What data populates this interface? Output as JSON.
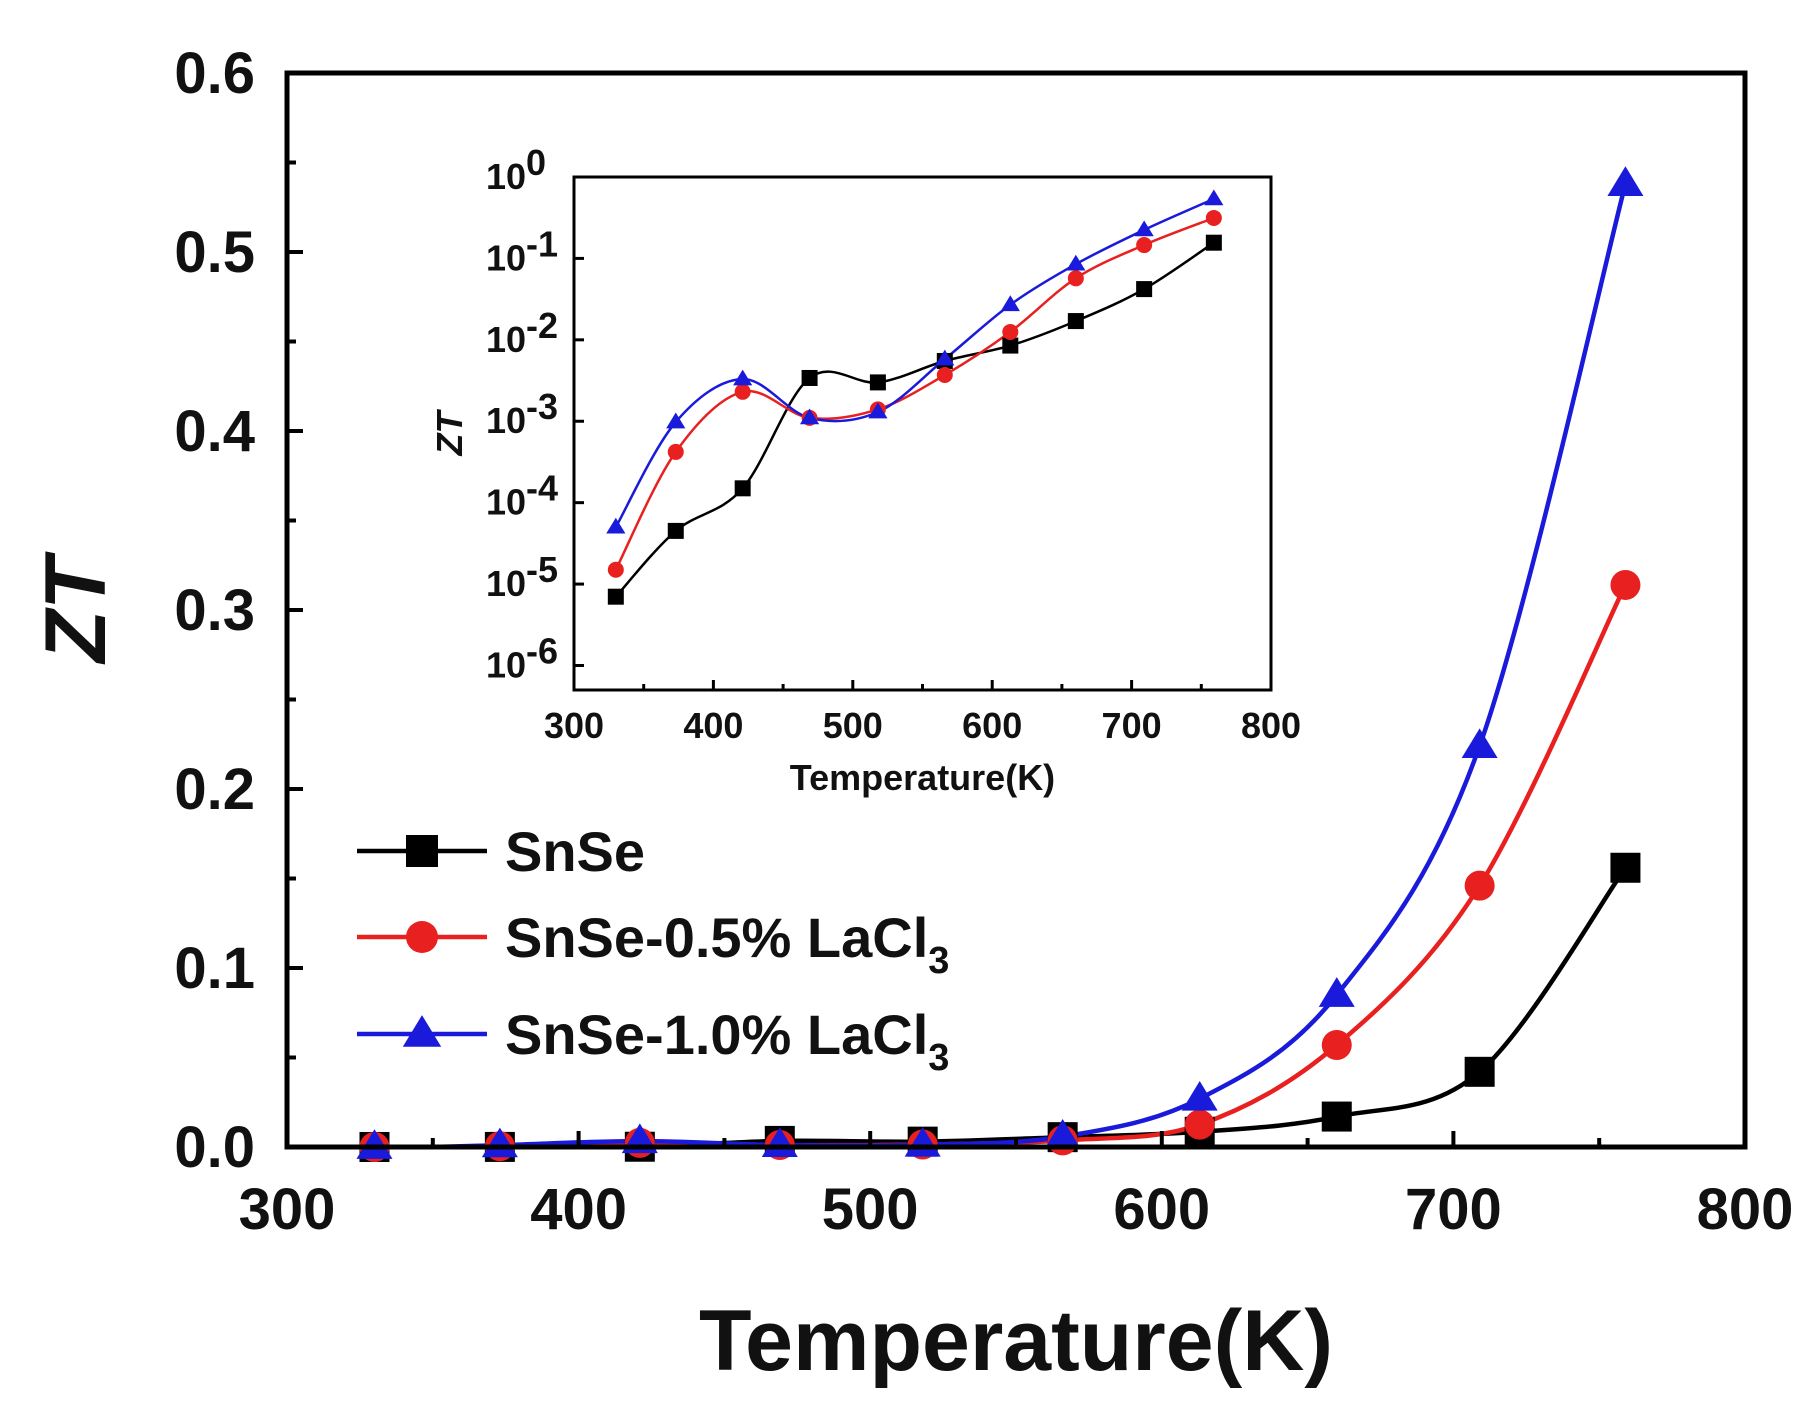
{
  "chart_data": [
    {
      "type": "line",
      "role": "main",
      "xlabel": "Temperature(K)",
      "ylabel": "ZT",
      "xlim": [
        300,
        800
      ],
      "ylim": [
        0,
        0.6
      ],
      "xticks": [
        "300",
        "400",
        "500",
        "600",
        "700",
        "800"
      ],
      "yticks": [
        "0.0",
        "0.1",
        "0.2",
        "0.3",
        "0.4",
        "0.5",
        "0.6"
      ],
      "x": [
        330,
        373,
        421,
        469,
        518,
        566,
        613,
        660,
        709,
        759
      ],
      "grid": false,
      "legend_position": "bottom-left",
      "series": [
        {
          "name": "SnSe",
          "marker": "square",
          "color": "#000000",
          "values": [
            7e-06,
            4.5e-05,
            0.00015,
            0.0034,
            0.003,
            0.0055,
            0.0085,
            0.017,
            0.042,
            0.156
          ]
        },
        {
          "name": "SnSe-0.5% LaCl",
          "name_subscript": "3",
          "marker": "circle",
          "color": "#e8201f",
          "values": [
            1.5e-05,
            0.00042,
            0.0023,
            0.0011,
            0.0014,
            0.0037,
            0.0125,
            0.057,
            0.146,
            0.314
          ]
        },
        {
          "name": "SnSe-1.0% LaCl",
          "name_subscript": "3",
          "marker": "triangle",
          "color": "#1a1adb",
          "values": [
            5e-05,
            0.00098,
            0.0033,
            0.0011,
            0.0013,
            0.0058,
            0.027,
            0.085,
            0.224,
            0.538
          ]
        }
      ]
    },
    {
      "type": "line",
      "role": "inset",
      "xlabel": "Temperature(K)",
      "ylabel": "ZT",
      "xlim": [
        300,
        800
      ],
      "ylim": [
        5e-07,
        1
      ],
      "yscale": "log",
      "xticks": [
        "300",
        "400",
        "500",
        "600",
        "700",
        "800"
      ],
      "yticks": [
        {
          "base": "10",
          "exp": "0"
        },
        {
          "base": "10",
          "exp": "-1"
        },
        {
          "base": "10",
          "exp": "-2"
        },
        {
          "base": "10",
          "exp": "-3"
        },
        {
          "base": "10",
          "exp": "-4"
        },
        {
          "base": "10",
          "exp": "-5"
        },
        {
          "base": "10",
          "exp": "-6"
        }
      ],
      "note": "same series as the main panel, plotted on a logarithmic ZT axis"
    }
  ]
}
